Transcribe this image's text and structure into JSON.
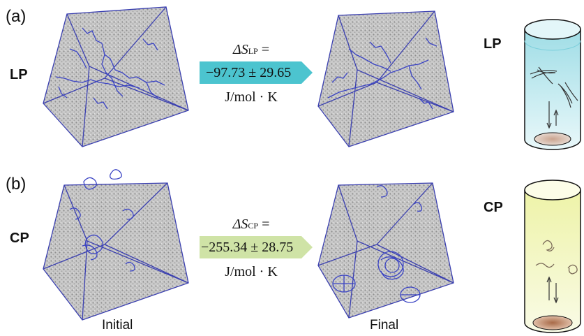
{
  "panels": {
    "a": {
      "label": "(a)",
      "row": "LP"
    },
    "b": {
      "label": "(b)",
      "row": "CP"
    }
  },
  "entropy": {
    "lp": {
      "delta": "ΔS",
      "sub": "LP",
      "eq": "=",
      "value": "−97.73 ± 29.65",
      "unit": "J/mol · K"
    },
    "cp": {
      "delta": "ΔS",
      "sub": "CP",
      "eq": "=",
      "value": "−255.34 ± 28.75",
      "unit": "J/mol · K"
    }
  },
  "captions": {
    "initial": "Initial",
    "final": "Final"
  },
  "colors": {
    "cube_edge": "#3a3fb0",
    "polymer": "#3b44c4",
    "lp_arrow": "#4cc4cf",
    "cp_arrow": "#cfe3a6",
    "lp_liquid": "#bfe8ef",
    "cp_liquid": "#f1f4b2"
  }
}
